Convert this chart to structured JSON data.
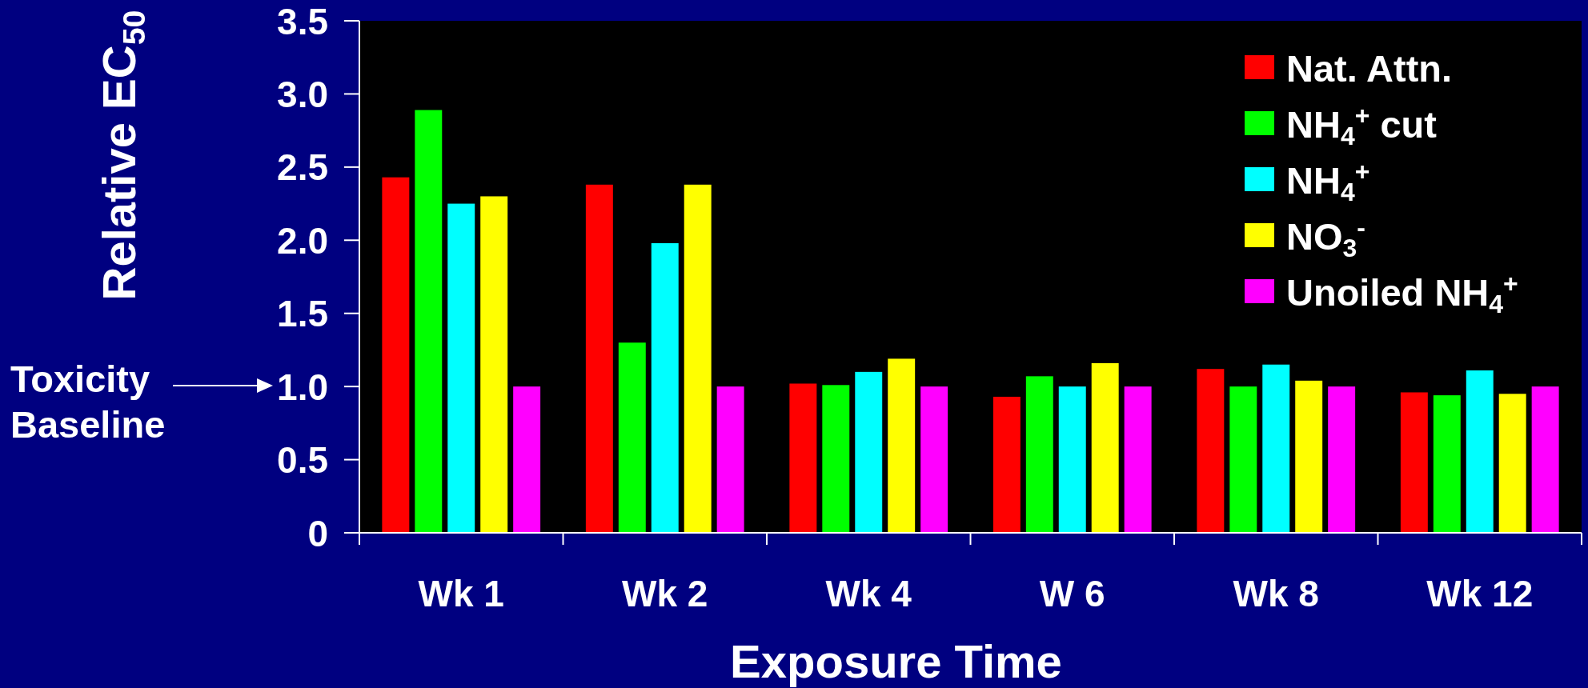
{
  "chart_data": {
    "type": "bar",
    "xlabel": "Exposure Time",
    "ylabel": "Relative EC$_{50}$",
    "categories": [
      "Wk 1",
      "Wk 2",
      "Wk 4",
      "W 6",
      "Wk 8",
      "Wk 12"
    ],
    "series": [
      {
        "name": "Nat. Attn.",
        "color": "#ff0000",
        "values": [
          2.43,
          2.38,
          1.02,
          0.93,
          1.12,
          0.96
        ]
      },
      {
        "name": "NH$_{4}$$^{+}$ cut",
        "color": "#00ff00",
        "values": [
          2.89,
          1.3,
          1.01,
          1.07,
          1.0,
          0.94
        ]
      },
      {
        "name": "NH$_{4}$$^{+}$",
        "color": "#00ffff",
        "values": [
          2.25,
          1.98,
          1.1,
          1.0,
          1.15,
          1.11
        ]
      },
      {
        "name": "NO$_{3}$$^{-}$",
        "color": "#ffff00",
        "values": [
          2.3,
          2.38,
          1.19,
          1.16,
          1.04,
          0.95
        ]
      },
      {
        "name": "Unoiled NH$_{4}$$^{+}$",
        "color": "#ff00ff",
        "values": [
          1.0,
          1.0,
          1.0,
          1.0,
          1.0,
          1.0
        ]
      }
    ],
    "ylim": [
      0,
      3.5
    ],
    "yticks": [
      0,
      0.5,
      {
        "value": 1,
        "label": "1.0"
      },
      1.5,
      {
        "value": 2,
        "label": "2.0"
      },
      2.5,
      {
        "value": 3,
        "label": "3.0"
      },
      3.5
    ],
    "legend": "top right",
    "annotations": [
      "Toxicity Baseline"
    ]
  }
}
